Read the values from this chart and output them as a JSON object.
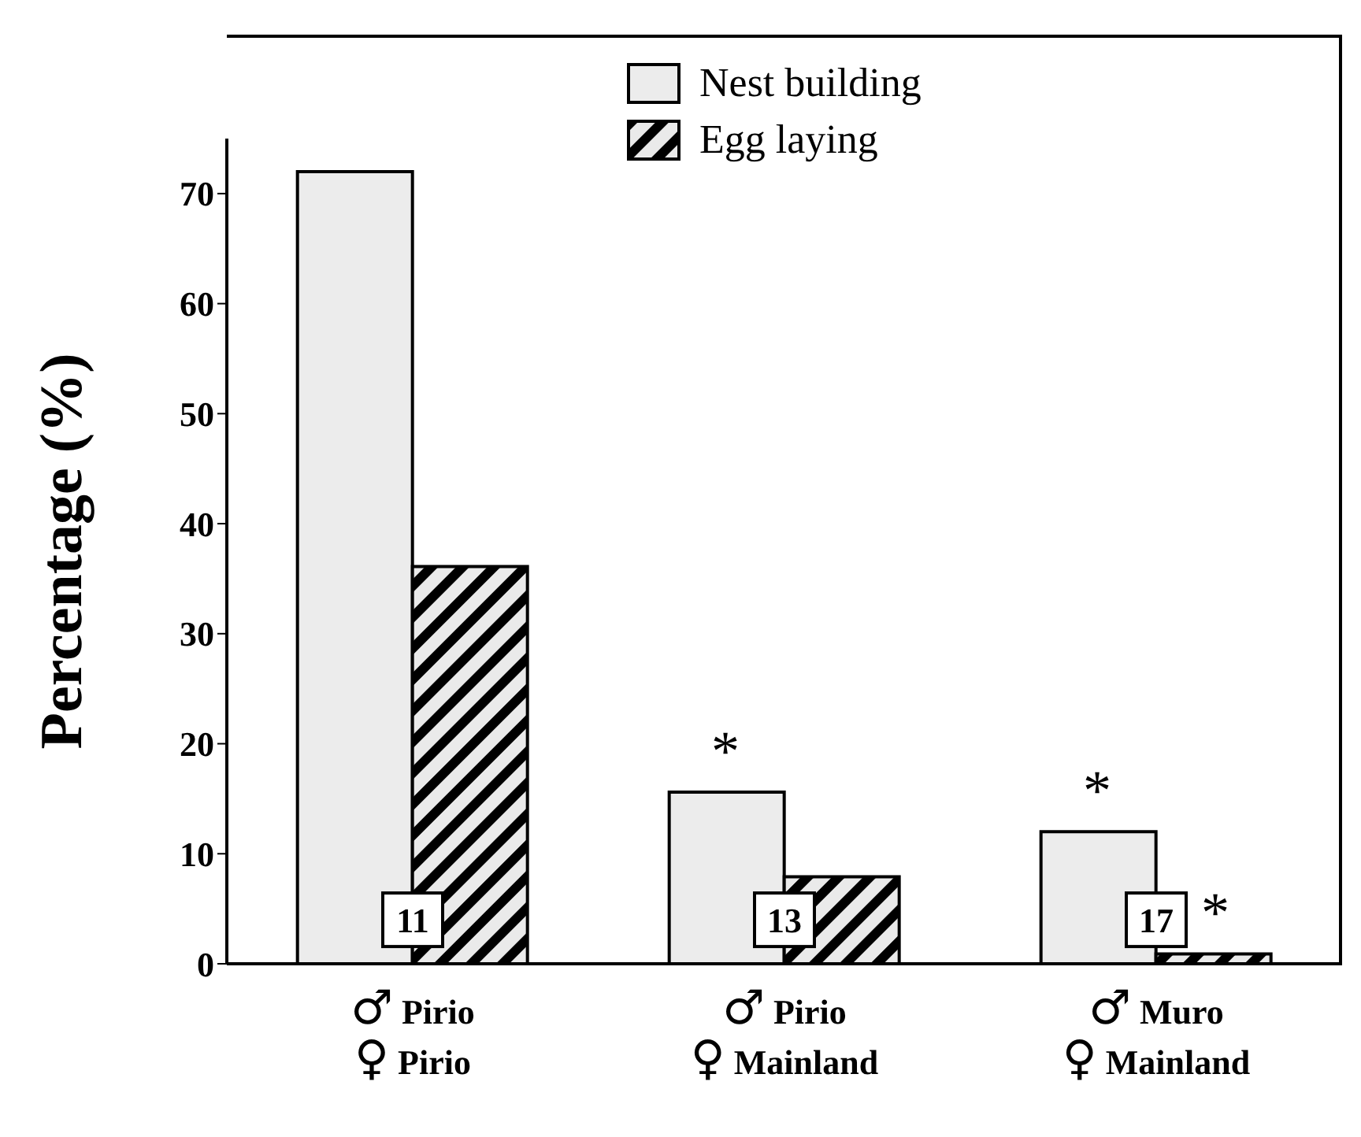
{
  "chart_data": {
    "type": "bar",
    "ylabel": "Percentage (%)",
    "categories": [
      "♂ Pirio\n♀ Pirio",
      "♂ Pirio\n♀ Mainland",
      "♂ Muro\n♀ Mainland"
    ],
    "series": [
      {
        "name": "Nest building",
        "color": "#ececec",
        "values": [
          72,
          15.6,
          12
        ]
      },
      {
        "name": "Egg laying",
        "color": "#000000",
        "values": [
          36.1,
          7.9,
          0.9
        ]
      }
    ],
    "ylim": [
      0,
      75
    ],
    "yticks": [
      0,
      10,
      20,
      30,
      40,
      50,
      60,
      70
    ],
    "grid": false,
    "legend": "top",
    "annotations": [
      {
        "text": "*",
        "x": "♂ Pirio\n♀ Mainland",
        "y": 15.6
      },
      {
        "text": "*",
        "x": "♂ Muro\n♀ Mainland",
        "y": 12
      },
      {
        "text": "*",
        "x": "♂ Muro\n♀ Mainland",
        "y": 0.9
      },
      {
        "text": "11",
        "x": "♂ Pirio\n♀ Pirio",
        "y": 4
      },
      {
        "text": "13",
        "x": "♂ Pirio\n♀ Mainland",
        "y": 4
      },
      {
        "text": "17",
        "x": "♂ Muro\n♀ Mainland",
        "y": 4
      }
    ]
  }
}
